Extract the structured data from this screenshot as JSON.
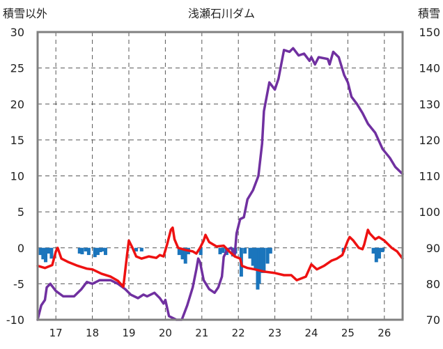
{
  "chart_data": {
    "type": "line",
    "title": "浅瀬石川ダム",
    "y_left_label": "積雪以外",
    "y_right_label": "積雪",
    "x_ticks": [
      "17",
      "18",
      "19",
      "20",
      "21",
      "22",
      "23",
      "24",
      "25",
      "26"
    ],
    "xlim": [
      16.5,
      26.5
    ],
    "y_left_ticks": [
      "30",
      "25",
      "20",
      "15",
      "10",
      "5",
      "0",
      "-5",
      "-10"
    ],
    "y_left_lim": [
      -10,
      30
    ],
    "y_right_ticks": [
      "150",
      "140",
      "130",
      "120",
      "110",
      "100",
      "90",
      "80",
      "70"
    ],
    "y_right_lim": [
      70,
      150
    ],
    "grid": true,
    "colors": {
      "snow": "#7030a0",
      "temperature": "#ee1111",
      "precipitation": "#1b75bc",
      "frame": "#808080"
    },
    "series": [
      {
        "axis": "right",
        "color": "#7030a0",
        "points": [
          [
            16.5,
            70.0
          ],
          [
            16.6,
            74.0
          ],
          [
            16.7,
            75.5
          ],
          [
            16.75,
            79.0
          ],
          [
            16.85,
            80.0
          ],
          [
            17.0,
            78.0
          ],
          [
            17.2,
            76.5
          ],
          [
            17.5,
            76.5
          ],
          [
            17.7,
            78.5
          ],
          [
            17.85,
            80.5
          ],
          [
            18.0,
            80.0
          ],
          [
            18.2,
            81.0
          ],
          [
            18.5,
            81.0
          ],
          [
            18.7,
            80.0
          ],
          [
            18.9,
            78.5
          ],
          [
            19.05,
            77.0
          ],
          [
            19.25,
            76.0
          ],
          [
            19.4,
            77.0
          ],
          [
            19.5,
            76.5
          ],
          [
            19.7,
            77.5
          ],
          [
            19.85,
            76.0
          ],
          [
            19.95,
            74.5
          ],
          [
            20.0,
            75.5
          ],
          [
            20.1,
            71.0
          ],
          [
            20.3,
            70.0
          ],
          [
            20.45,
            70.0
          ],
          [
            20.6,
            74.0
          ],
          [
            20.75,
            79.0
          ],
          [
            20.85,
            84.0
          ],
          [
            20.9,
            87.0
          ],
          [
            20.95,
            86.0
          ],
          [
            21.05,
            81.0
          ],
          [
            21.2,
            78.5
          ],
          [
            21.35,
            77.5
          ],
          [
            21.45,
            79.0
          ],
          [
            21.55,
            82.0
          ],
          [
            21.6,
            87.5
          ],
          [
            21.7,
            89.5
          ],
          [
            21.8,
            90.0
          ],
          [
            21.9,
            88.0
          ],
          [
            21.95,
            94.0
          ],
          [
            22.05,
            98.0
          ],
          [
            22.15,
            98.5
          ],
          [
            22.25,
            103.5
          ],
          [
            22.4,
            106.0
          ],
          [
            22.55,
            110.0
          ],
          [
            22.65,
            119.0
          ],
          [
            22.7,
            128.0
          ],
          [
            22.85,
            136.0
          ],
          [
            23.0,
            134.0
          ],
          [
            23.1,
            137.0
          ],
          [
            23.25,
            145.0
          ],
          [
            23.4,
            144.5
          ],
          [
            23.5,
            145.5
          ],
          [
            23.65,
            143.5
          ],
          [
            23.8,
            144.0
          ],
          [
            23.95,
            142.0
          ],
          [
            24.0,
            143.0
          ],
          [
            24.1,
            141.0
          ],
          [
            24.2,
            143.0
          ],
          [
            24.45,
            142.5
          ],
          [
            24.5,
            141.0
          ],
          [
            24.6,
            144.5
          ],
          [
            24.75,
            143.0
          ],
          [
            24.9,
            138.0
          ],
          [
            25.0,
            136.0
          ],
          [
            25.1,
            132.0
          ],
          [
            25.25,
            130.0
          ],
          [
            25.4,
            127.5
          ],
          [
            25.55,
            124.5
          ],
          [
            25.75,
            122.0
          ],
          [
            25.95,
            117.5
          ],
          [
            26.15,
            115.0
          ],
          [
            26.3,
            112.5
          ],
          [
            26.5,
            110.5
          ]
        ]
      },
      {
        "axis": "left",
        "color": "#ee1111",
        "points": [
          [
            16.5,
            -2.5
          ],
          [
            16.7,
            -2.8
          ],
          [
            16.9,
            -2.4
          ],
          [
            17.0,
            -0.5
          ],
          [
            17.05,
            0.0
          ],
          [
            17.15,
            -1.5
          ],
          [
            17.35,
            -2.0
          ],
          [
            17.6,
            -2.5
          ],
          [
            17.85,
            -2.9
          ],
          [
            18.0,
            -3.0
          ],
          [
            18.25,
            -3.6
          ],
          [
            18.5,
            -4.0
          ],
          [
            18.7,
            -4.6
          ],
          [
            18.85,
            -5.4
          ],
          [
            18.95,
            -1.0
          ],
          [
            19.0,
            1.0
          ],
          [
            19.1,
            0.0
          ],
          [
            19.2,
            -1.2
          ],
          [
            19.35,
            -1.5
          ],
          [
            19.55,
            -1.2
          ],
          [
            19.75,
            -1.4
          ],
          [
            19.85,
            -1.0
          ],
          [
            19.95,
            -1.2
          ],
          [
            20.05,
            0.5
          ],
          [
            20.15,
            2.5
          ],
          [
            20.2,
            2.8
          ],
          [
            20.25,
            1.2
          ],
          [
            20.35,
            0.0
          ],
          [
            20.55,
            -0.3
          ],
          [
            20.75,
            -0.5
          ],
          [
            20.85,
            -0.8
          ],
          [
            20.95,
            0.0
          ],
          [
            21.05,
            1.0
          ],
          [
            21.1,
            1.8
          ],
          [
            21.2,
            0.8
          ],
          [
            21.4,
            0.2
          ],
          [
            21.6,
            0.3
          ],
          [
            21.75,
            -0.5
          ],
          [
            21.9,
            -1.2
          ],
          [
            22.05,
            -1.5
          ],
          [
            22.1,
            -2.5
          ],
          [
            22.25,
            -2.8
          ],
          [
            22.45,
            -3.0
          ],
          [
            22.7,
            -3.3
          ],
          [
            23.0,
            -3.5
          ],
          [
            23.25,
            -3.8
          ],
          [
            23.45,
            -3.8
          ],
          [
            23.6,
            -4.5
          ],
          [
            23.85,
            -4.0
          ],
          [
            24.0,
            -2.3
          ],
          [
            24.15,
            -3.0
          ],
          [
            24.35,
            -2.5
          ],
          [
            24.55,
            -1.8
          ],
          [
            24.7,
            -1.5
          ],
          [
            24.85,
            -1.0
          ],
          [
            25.0,
            1.0
          ],
          [
            25.05,
            1.5
          ],
          [
            25.15,
            1.0
          ],
          [
            25.3,
            0.0
          ],
          [
            25.4,
            -0.2
          ],
          [
            25.45,
            0.5
          ],
          [
            25.55,
            2.5
          ],
          [
            25.6,
            2.0
          ],
          [
            25.75,
            1.2
          ],
          [
            25.85,
            1.5
          ],
          [
            26.0,
            1.0
          ],
          [
            26.2,
            0.0
          ],
          [
            26.35,
            -0.5
          ],
          [
            26.5,
            -1.5
          ]
        ]
      },
      {
        "axis": "left",
        "color": "#1b75bc",
        "type": "bar",
        "bars": [
          [
            16.58,
            -1.0
          ],
          [
            16.65,
            -1.6
          ],
          [
            16.72,
            -2.0
          ],
          [
            16.8,
            -0.8
          ],
          [
            16.88,
            -1.5
          ],
          [
            17.65,
            -0.8
          ],
          [
            17.72,
            -0.9
          ],
          [
            17.82,
            -0.5
          ],
          [
            17.9,
            -1.0
          ],
          [
            18.07,
            -1.3
          ],
          [
            18.15,
            -1.0
          ],
          [
            18.22,
            -0.6
          ],
          [
            18.3,
            -0.5
          ],
          [
            18.36,
            -1.0
          ],
          [
            19.2,
            -0.5
          ],
          [
            19.35,
            -0.5
          ],
          [
            20.38,
            -1.0
          ],
          [
            20.47,
            -1.6
          ],
          [
            20.55,
            -2.2
          ],
          [
            20.63,
            -0.9
          ],
          [
            20.97,
            -1.0
          ],
          [
            21.5,
            -0.9
          ],
          [
            21.58,
            -0.7
          ],
          [
            21.68,
            -1.0
          ],
          [
            21.85,
            -1.2
          ],
          [
            21.92,
            -0.8
          ],
          [
            22.08,
            -4.0
          ],
          [
            22.18,
            -0.8
          ],
          [
            22.32,
            -1.5
          ],
          [
            22.4,
            -2.5
          ],
          [
            22.47,
            -3.0
          ],
          [
            22.53,
            -5.8
          ],
          [
            22.57,
            -5.0
          ],
          [
            22.63,
            -3.5
          ],
          [
            22.7,
            -3.5
          ],
          [
            22.8,
            -2.2
          ],
          [
            22.88,
            -0.8
          ],
          [
            24.88,
            -0.6
          ],
          [
            25.7,
            -0.8
          ],
          [
            25.78,
            -2.0
          ],
          [
            25.86,
            -1.5
          ],
          [
            25.95,
            -0.6
          ]
        ]
      }
    ]
  }
}
